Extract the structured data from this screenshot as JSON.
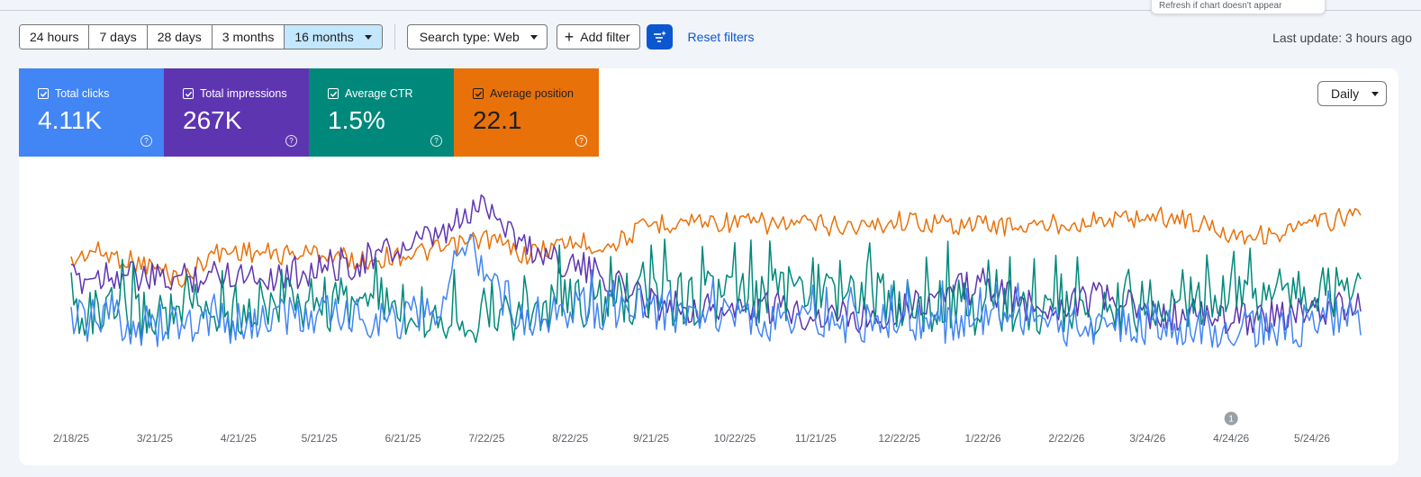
{
  "tooltip": {
    "text": "Refresh if chart doesn't appear"
  },
  "toolbar": {
    "ranges": [
      "24 hours",
      "7 days",
      "28 days",
      "3 months",
      "16 months"
    ],
    "active_range": "16 months",
    "search_type": "Search type: Web",
    "add_filter": "Add filter",
    "reset_filters": "Reset filters",
    "last_update": "Last update: 3 hours ago"
  },
  "metrics": [
    {
      "label": "Total clicks",
      "value": "4.11K",
      "color": "#4285f4",
      "checked": true
    },
    {
      "label": "Total impressions",
      "value": "267K",
      "color": "#5e35b1",
      "checked": true
    },
    {
      "label": "Average CTR",
      "value": "1.5%",
      "color": "#00897b",
      "checked": true
    },
    {
      "label": "Average position",
      "value": "22.1",
      "color": "#e8710a",
      "checked": true
    }
  ],
  "granularity": "Daily",
  "annotation_marker": "1",
  "chart_data": {
    "type": "line",
    "x_ticks": [
      "2/18/25",
      "3/21/25",
      "4/21/25",
      "5/21/25",
      "6/21/25",
      "7/22/25",
      "8/22/25",
      "9/21/25",
      "10/22/25",
      "11/21/25",
      "12/22/25",
      "1/22/26",
      "2/22/26",
      "3/24/26",
      "4/24/26",
      "5/24/26"
    ],
    "x_range": [
      "2/18/25",
      "6/11/26"
    ],
    "annotation_date": "4/24/26",
    "grid": false,
    "series": [
      {
        "name": "Average position",
        "color": "#e8710a",
        "anchors": [
          [
            "2/18/25",
            34
          ],
          [
            "2/25/25",
            28
          ],
          [
            "3/10/25",
            32
          ],
          [
            "3/21/25",
            36
          ],
          [
            "4/1/25",
            42
          ],
          [
            "4/10/25",
            30
          ],
          [
            "4/21/25",
            28
          ],
          [
            "5/5/25",
            30
          ],
          [
            "5/21/25",
            29
          ],
          [
            "6/5/25",
            33
          ],
          [
            "6/21/25",
            30
          ],
          [
            "7/5/25",
            28
          ],
          [
            "7/22/25",
            22
          ],
          [
            "8/5/25",
            30
          ],
          [
            "8/22/25",
            24
          ],
          [
            "9/5/25",
            26
          ],
          [
            "9/21/25",
            16
          ],
          [
            "10/5/25",
            14
          ],
          [
            "10/22/25",
            15
          ],
          [
            "11/10/25",
            16
          ],
          [
            "11/21/25",
            16
          ],
          [
            "12/10/25",
            17
          ],
          [
            "12/22/25",
            14
          ],
          [
            "1/10/26",
            16
          ],
          [
            "1/22/26",
            16
          ],
          [
            "2/10/26",
            17
          ],
          [
            "2/22/26",
            15
          ],
          [
            "3/10/26",
            14
          ],
          [
            "3/24/26",
            12
          ],
          [
            "4/5/26",
            13
          ],
          [
            "4/24/26",
            20
          ],
          [
            "5/10/26",
            21
          ],
          [
            "5/24/26",
            16
          ],
          [
            "6/11/26",
            11
          ]
        ]
      },
      {
        "name": "Total impressions",
        "color": "#5e35b1",
        "anchors": [
          [
            "2/18/25",
            42
          ],
          [
            "3/5/25",
            38
          ],
          [
            "3/21/25",
            42
          ],
          [
            "4/5/25",
            40
          ],
          [
            "4/21/25",
            38
          ],
          [
            "5/5/25",
            40
          ],
          [
            "5/21/25",
            36
          ],
          [
            "6/5/25",
            33
          ],
          [
            "6/21/25",
            27
          ],
          [
            "7/5/25",
            22
          ],
          [
            "7/22/25",
            5
          ],
          [
            "8/5/25",
            26
          ],
          [
            "8/22/25",
            34
          ],
          [
            "9/5/25",
            42
          ],
          [
            "9/21/25",
            52
          ],
          [
            "10/5/25",
            54
          ],
          [
            "10/22/25",
            56
          ],
          [
            "11/10/25",
            55
          ],
          [
            "11/21/25",
            58
          ],
          [
            "12/10/25",
            58
          ],
          [
            "12/22/25",
            55
          ],
          [
            "1/10/26",
            47
          ],
          [
            "1/22/26",
            44
          ],
          [
            "2/10/26",
            55
          ],
          [
            "2/22/26",
            52
          ],
          [
            "3/10/26",
            50
          ],
          [
            "3/24/26",
            58
          ],
          [
            "4/10/26",
            58
          ],
          [
            "4/24/26",
            60
          ],
          [
            "5/10/26",
            58
          ],
          [
            "5/24/26",
            57
          ],
          [
            "6/11/26",
            53
          ]
        ]
      },
      {
        "name": "Average CTR",
        "color": "#00897b",
        "anchors": [
          [
            "2/18/25",
            55
          ],
          [
            "3/5/25",
            60
          ],
          [
            "3/21/25",
            58
          ],
          [
            "4/5/25",
            57
          ],
          [
            "4/21/25",
            55
          ],
          [
            "5/21/25",
            52
          ],
          [
            "6/21/25",
            56
          ],
          [
            "7/22/25",
            58
          ],
          [
            "8/22/25",
            54
          ],
          [
            "9/21/25",
            50
          ],
          [
            "10/22/25",
            50
          ],
          [
            "11/21/25",
            47
          ],
          [
            "12/22/25",
            52
          ],
          [
            "1/22/26",
            55
          ],
          [
            "2/22/26",
            56
          ],
          [
            "3/24/26",
            54
          ],
          [
            "4/24/26",
            48
          ],
          [
            "5/24/26",
            47
          ],
          [
            "6/11/26",
            48
          ]
        ]
      },
      {
        "name": "Total clicks",
        "color": "#4285f4",
        "anchors": [
          [
            "2/18/25",
            60
          ],
          [
            "3/21/25",
            63
          ],
          [
            "4/21/25",
            62
          ],
          [
            "5/21/25",
            58
          ],
          [
            "6/21/25",
            60
          ],
          [
            "7/5/25",
            54
          ],
          [
            "7/15/25",
            20
          ],
          [
            "7/22/25",
            40
          ],
          [
            "8/5/25",
            60
          ],
          [
            "8/22/25",
            54
          ],
          [
            "9/21/25",
            56
          ],
          [
            "10/22/25",
            60
          ],
          [
            "11/21/25",
            62
          ],
          [
            "12/22/25",
            60
          ],
          [
            "1/22/26",
            62
          ],
          [
            "2/22/26",
            63
          ],
          [
            "3/24/26",
            62
          ],
          [
            "4/24/26",
            65
          ],
          [
            "5/24/26",
            63
          ],
          [
            "6/11/26",
            58
          ]
        ]
      }
    ]
  }
}
